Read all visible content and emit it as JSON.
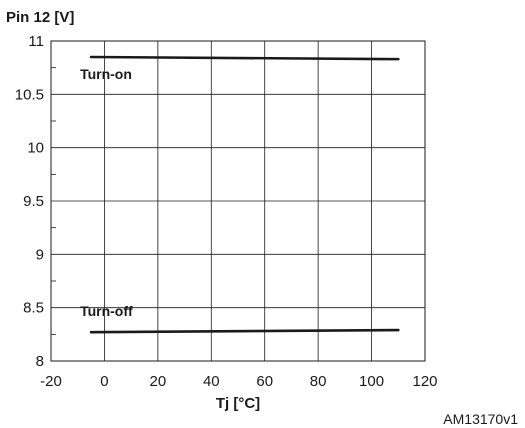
{
  "chart_data": {
    "type": "line",
    "title": "",
    "ylabel": "Pin 12 [V]",
    "xlabel": "Tj [°C]",
    "xlim": [
      -20,
      120
    ],
    "ylim": [
      8,
      11
    ],
    "x_ticks": [
      -20,
      0,
      20,
      40,
      60,
      80,
      100,
      120
    ],
    "y_ticks": [
      8,
      8.5,
      9,
      9.5,
      10,
      10.5,
      11
    ],
    "x_tick_labels": [
      "-20",
      "0",
      "20",
      "40",
      "60",
      "80",
      "100",
      "120"
    ],
    "y_tick_labels": [
      "8",
      "8.5",
      "9",
      "9.5",
      "10",
      "10.5",
      "11"
    ],
    "grid": true,
    "series": [
      {
        "name": "Turn-on",
        "x": [
          -5,
          110
        ],
        "y": [
          10.85,
          10.83
        ],
        "color": "#1a1a1a"
      },
      {
        "name": "Turn-off",
        "x": [
          -5,
          110
        ],
        "y": [
          8.27,
          8.29
        ],
        "color": "#1a1a1a"
      }
    ],
    "figure_id": "AM13170v1"
  }
}
